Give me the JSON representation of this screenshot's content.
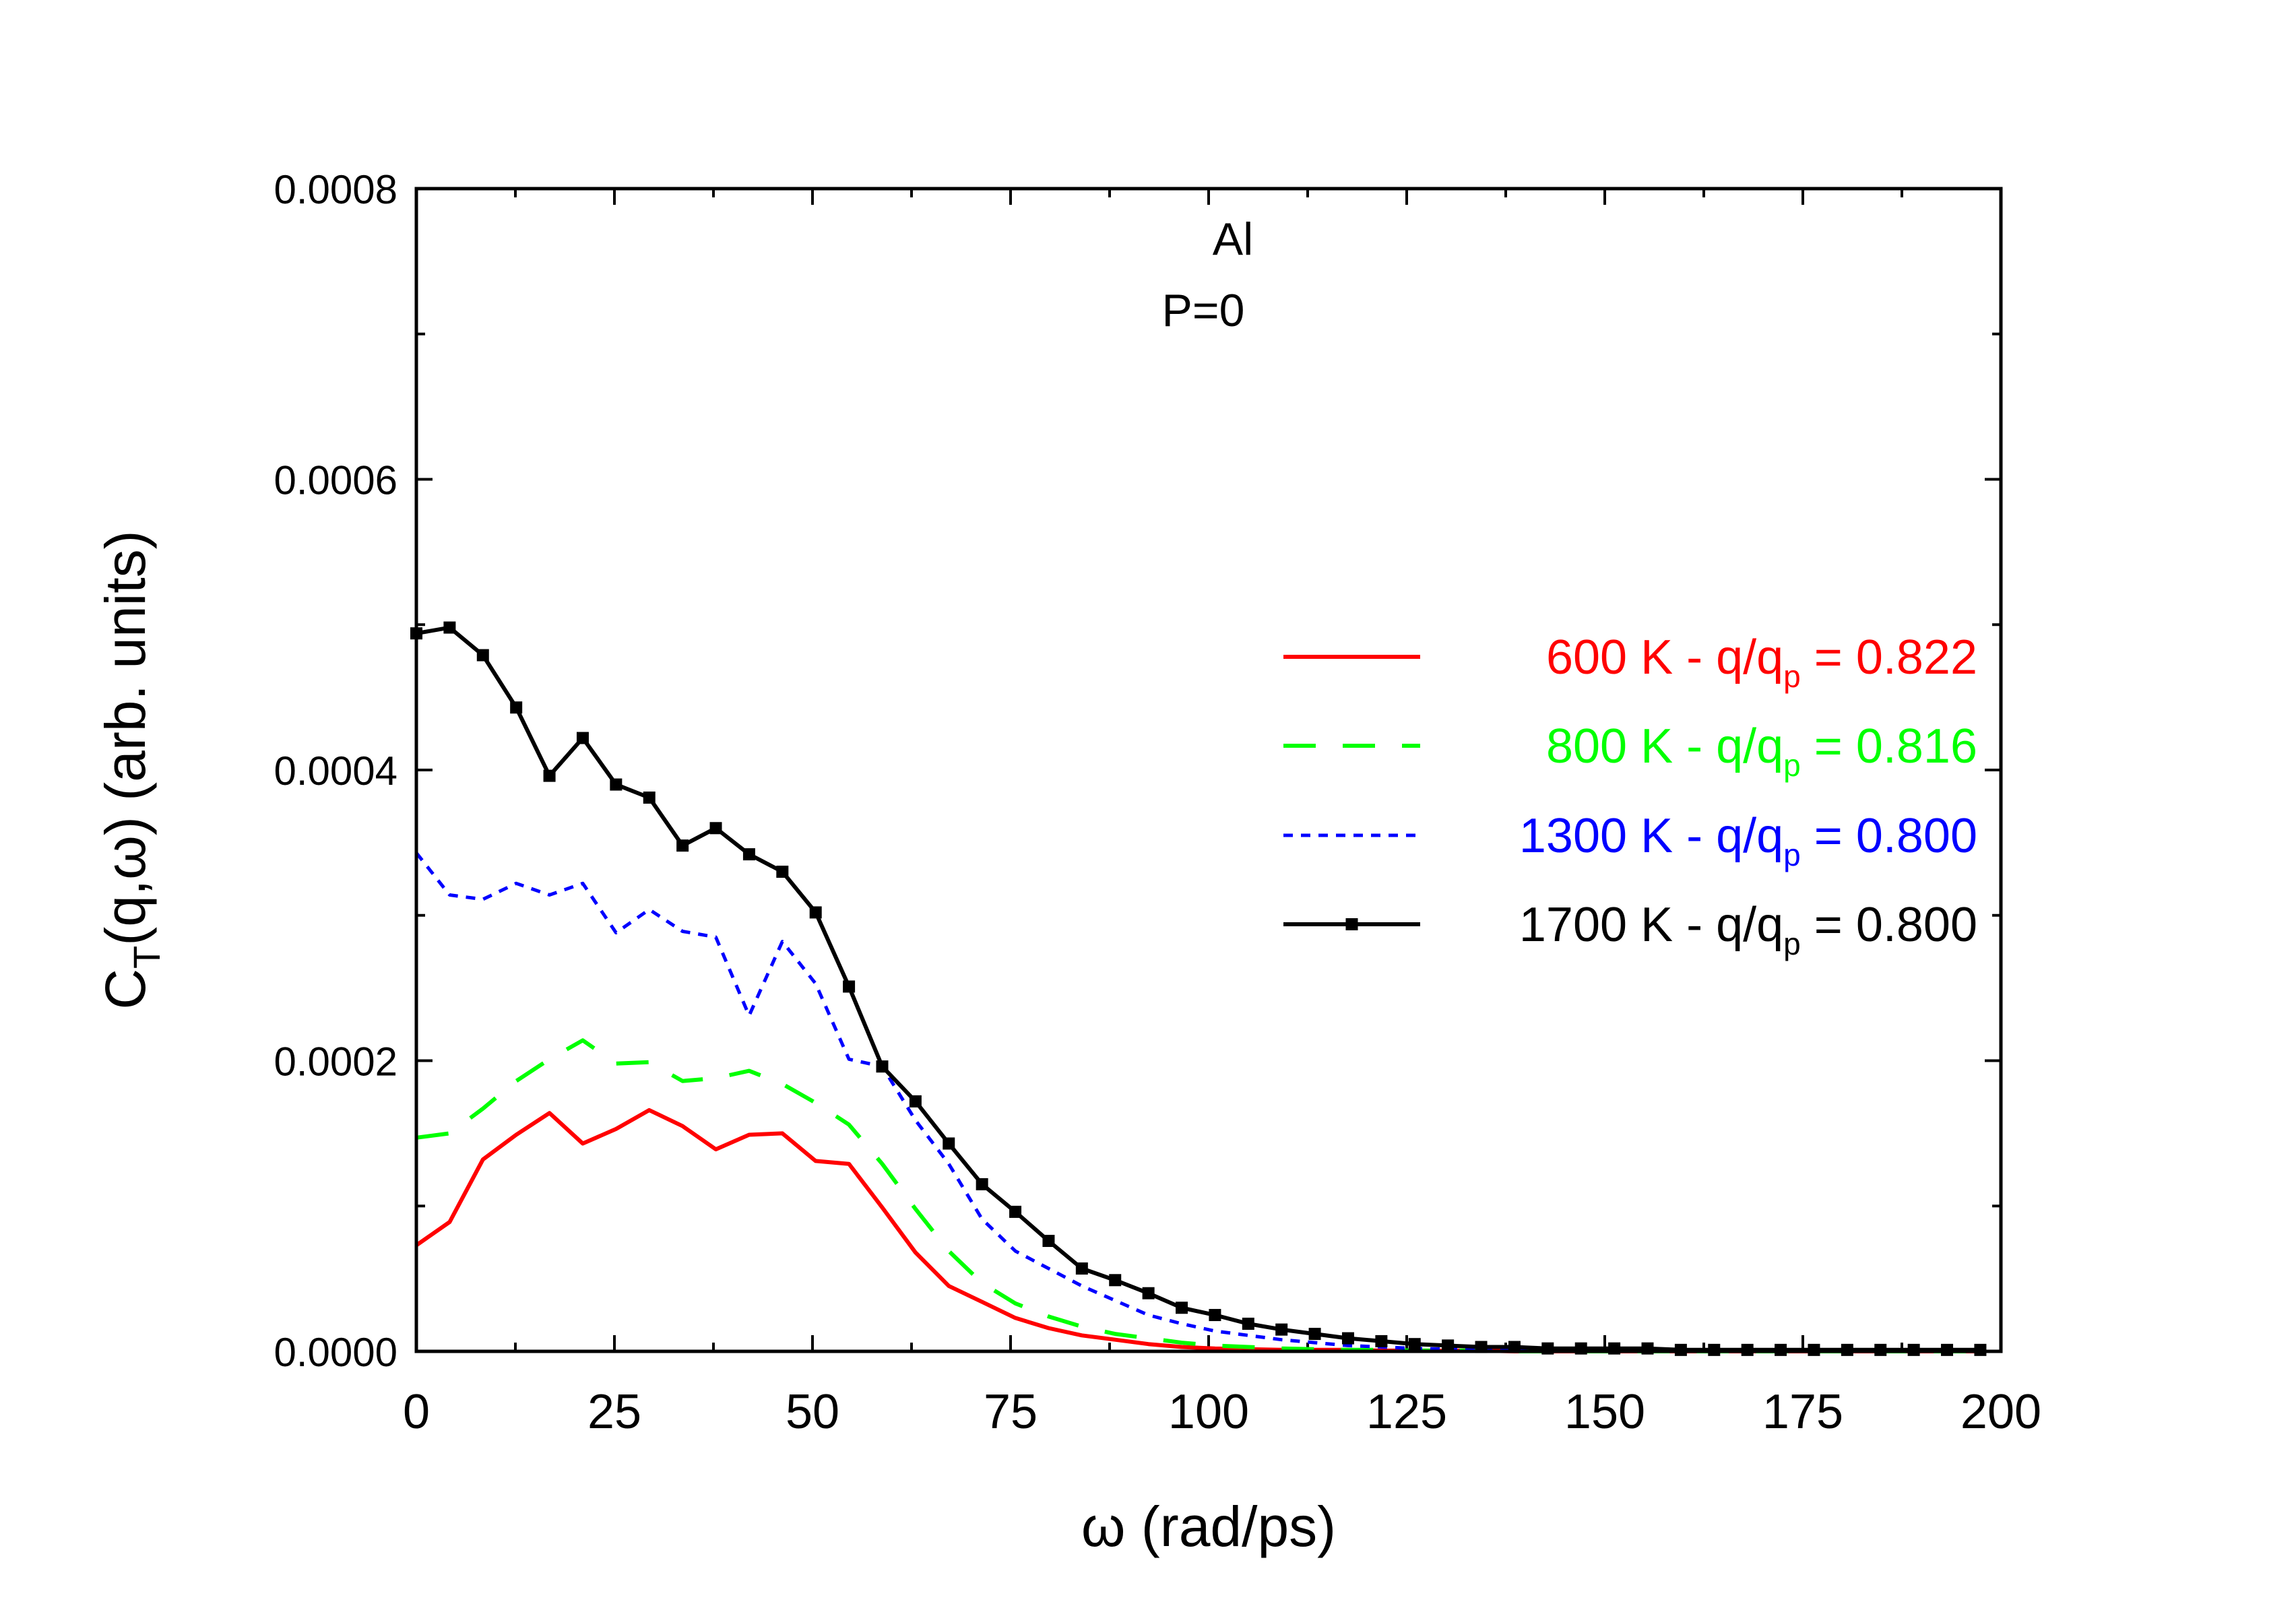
{
  "chart_data": {
    "type": "line",
    "annotation": {
      "line1": "Al",
      "line2": "P=0"
    },
    "xlabel": "ω (rad/ps)",
    "ylabel": {
      "main": "C",
      "sub": "T",
      "rest": "(q,ω) (arb. units)"
    },
    "xlim": [
      0,
      200
    ],
    "ylim": [
      0,
      0.0008
    ],
    "xticks": [
      {
        "value": 0,
        "label": "0"
      },
      {
        "value": 25,
        "label": "25"
      },
      {
        "value": 50,
        "label": "50"
      },
      {
        "value": 75,
        "label": "75"
      },
      {
        "value": 100,
        "label": "100"
      },
      {
        "value": 125,
        "label": "125"
      },
      {
        "value": 150,
        "label": "150"
      },
      {
        "value": 175,
        "label": "175"
      },
      {
        "value": 200,
        "label": "200"
      }
    ],
    "yticks": [
      {
        "value": 0,
        "label": "0.0000"
      },
      {
        "value": 0.0002,
        "label": "0.0002"
      },
      {
        "value": 0.0004,
        "label": "0.0004"
      },
      {
        "value": 0.0006,
        "label": "0.0006"
      },
      {
        "value": 0.0008,
        "label": "0.0008"
      }
    ],
    "x_minor_step": 12.5,
    "y_minor_step": 0.0001,
    "grid": false,
    "legend_position": "right",
    "series": [
      {
        "name": "600 K - q/qp = 0.822",
        "legend": {
          "pre": "600 K - q/q",
          "sub": "p",
          "post": " = 0.822"
        },
        "color": "#ff0000",
        "style": "solid",
        "marker": "none",
        "x": [
          0,
          4.2,
          8.4,
          12.6,
          16.8,
          21,
          25.2,
          29.4,
          33.6,
          37.8,
          42,
          46.2,
          50.4,
          54.6,
          58.8,
          63,
          67.2,
          71.4,
          75.6,
          79.8,
          84,
          88.2,
          92.4,
          96.6,
          100.8,
          105,
          109.2,
          113.4,
          117.6,
          121.8,
          126,
          130.2,
          134.4,
          138.6,
          142.8,
          147,
          151.2,
          155.4,
          159.6,
          163.8,
          168,
          172.2,
          176.4,
          180.6,
          184.8,
          189,
          193.2,
          197.4
        ],
        "y": [
          7.3e-05,
          8.9e-05,
          0.000132,
          0.000149,
          0.000164,
          0.000143,
          0.000153,
          0.000166,
          0.000155,
          0.000139,
          0.000149,
          0.00015,
          0.000131,
          0.000129,
          9.9e-05,
          6.8e-05,
          4.5e-05,
          3.4e-05,
          2.3e-05,
          1.6e-05,
          1.1e-05,
          8e-06,
          5e-06,
          3e-06,
          2e-06,
          1.5e-06,
          1e-06,
          1e-06,
          1e-06,
          5e-07,
          5e-07,
          5e-07,
          5e-07,
          0,
          0,
          0,
          0,
          0,
          0,
          0,
          0,
          0,
          0,
          0,
          0,
          0,
          0,
          0
        ]
      },
      {
        "name": "800 K - q/qp = 0.816",
        "legend": {
          "pre": "800 K - q/q",
          "sub": "p",
          "post": " = 0.816"
        },
        "color": "#00ff00",
        "style": "dashed",
        "marker": "none",
        "x": [
          0,
          4.2,
          8.4,
          12.6,
          16.8,
          21,
          25.2,
          29.4,
          33.6,
          37.8,
          42,
          46.2,
          50.4,
          54.6,
          58.8,
          63,
          67.2,
          71.4,
          75.6,
          79.8,
          84,
          88.2,
          92.4,
          96.6,
          100.8,
          105,
          109.2,
          113.4,
          117.6,
          121.8,
          126,
          130.2,
          134.4,
          138.6,
          142.8,
          147,
          151.2,
          155.4,
          159.6,
          163.8,
          168,
          172.2,
          176.4,
          180.6,
          184.8,
          189,
          193.2,
          197.4
        ],
        "y": [
          0.000147,
          0.00015,
          0.000167,
          0.000186,
          0.000201,
          0.000214,
          0.000198,
          0.000199,
          0.000186,
          0.000188,
          0.000193,
          0.000184,
          0.000171,
          0.000156,
          0.000129,
          9.8e-05,
          6.9e-05,
          4.7e-05,
          3.3e-05,
          2.4e-05,
          1.7e-05,
          1.2e-05,
          9e-06,
          6e-06,
          4e-06,
          3e-06,
          2e-06,
          1.5e-06,
          1e-06,
          1e-06,
          5e-07,
          5e-07,
          5e-07,
          0,
          0,
          0,
          0,
          0,
          0,
          0,
          0,
          0,
          0,
          0,
          0,
          0,
          0,
          0
        ]
      },
      {
        "name": "1300 K - q/qp = 0.800",
        "legend": {
          "pre": "1300 K - q/q",
          "sub": "p",
          "post": " = 0.800"
        },
        "color": "#0000ff",
        "style": "dotted",
        "marker": "none",
        "x": [
          0,
          4.2,
          8.4,
          12.6,
          16.8,
          21,
          25.2,
          29.4,
          33.6,
          37.8,
          42,
          46.2,
          50.4,
          54.6,
          58.8,
          63,
          67.2,
          71.4,
          75.6,
          79.8,
          84,
          88.2,
          92.4,
          96.6,
          100.8,
          105,
          109.2,
          113.4,
          117.6,
          121.8,
          126,
          130.2,
          134.4,
          138.6,
          142.8,
          147,
          151.2,
          155.4,
          159.6,
          163.8,
          168,
          172.2,
          176.4,
          180.6,
          184.8,
          189,
          193.2,
          197.4
        ],
        "y": [
          0.000343,
          0.000314,
          0.000311,
          0.000322,
          0.000314,
          0.000322,
          0.000288,
          0.000304,
          0.000289,
          0.000285,
          0.000231,
          0.000282,
          0.000253,
          0.000201,
          0.000196,
          0.000159,
          0.000129,
          9.1e-05,
          6.9e-05,
          5.7e-05,
          4.5e-05,
          3.5e-05,
          2.5e-05,
          1.9e-05,
          1.4e-05,
          1.1e-05,
          8e-06,
          6e-06,
          4e-06,
          3e-06,
          2e-06,
          1.5e-06,
          1e-06,
          1e-06,
          5e-07,
          5e-07,
          0,
          0,
          0,
          0,
          0,
          0,
          0,
          0,
          0,
          0,
          0,
          0
        ]
      },
      {
        "name": "1700 K - q/qp = 0.800",
        "legend": {
          "pre": "1700 K - q/q",
          "sub": "p",
          "post": " = 0.800"
        },
        "color": "#000000",
        "style": "solid",
        "marker": "square",
        "x": [
          0,
          4.2,
          8.4,
          12.6,
          16.8,
          21,
          25.2,
          29.4,
          33.6,
          37.8,
          42,
          46.2,
          50.4,
          54.6,
          58.8,
          63,
          67.2,
          71.4,
          75.6,
          79.8,
          84,
          88.2,
          92.4,
          96.6,
          100.8,
          105,
          109.2,
          113.4,
          117.6,
          121.8,
          126,
          130.2,
          134.4,
          138.6,
          142.8,
          147,
          151.2,
          155.4,
          159.6,
          163.8,
          168,
          172.2,
          176.4,
          180.6,
          184.8,
          189,
          193.2,
          197.4
        ],
        "y": [
          0.000494,
          0.000498,
          0.000479,
          0.000443,
          0.000396,
          0.000422,
          0.00039,
          0.000381,
          0.000348,
          0.00036,
          0.000342,
          0.00033,
          0.000302,
          0.000251,
          0.000196,
          0.000172,
          0.000143,
          0.000115,
          9.6e-05,
          7.6e-05,
          5.7e-05,
          4.9e-05,
          4e-05,
          3e-05,
          2.5e-05,
          1.9e-05,
          1.5e-05,
          1.2e-05,
          9e-06,
          7e-06,
          5e-06,
          4e-06,
          3e-06,
          3e-06,
          2e-06,
          2e-06,
          2e-06,
          2e-06,
          1e-06,
          1e-06,
          1e-06,
          1e-06,
          1e-06,
          1e-06,
          1e-06,
          1e-06,
          1e-06,
          1e-06
        ]
      }
    ]
  }
}
